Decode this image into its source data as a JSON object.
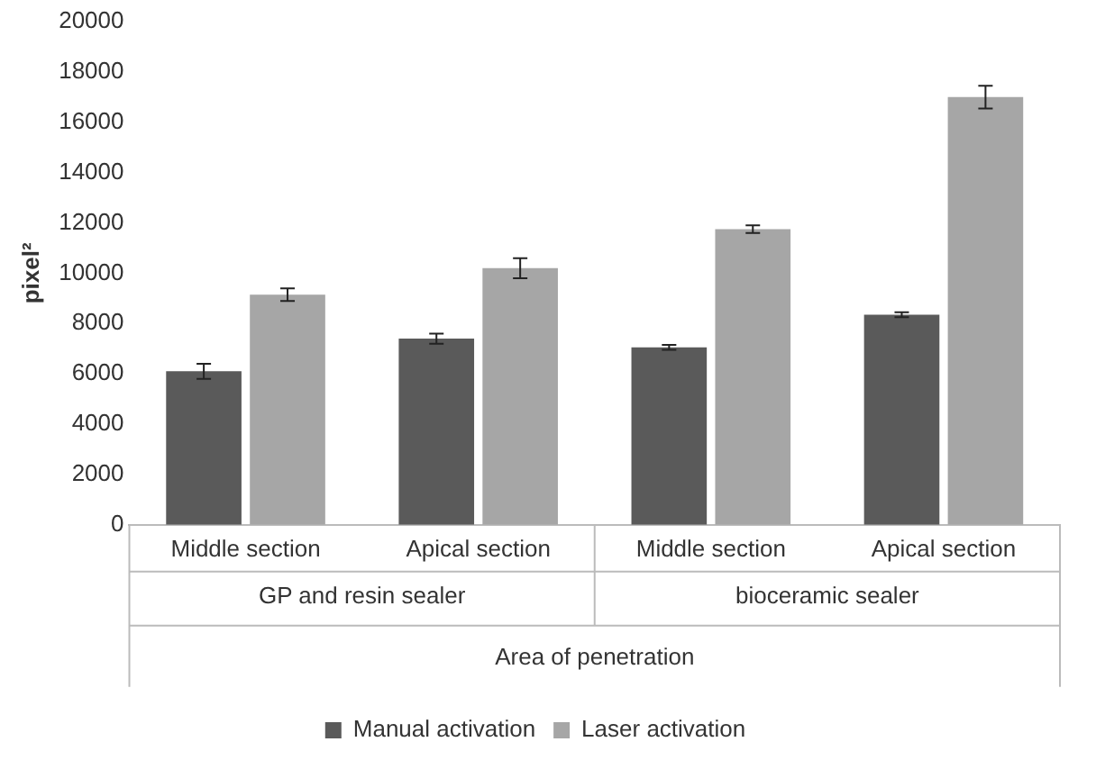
{
  "chart_data": {
    "type": "bar",
    "ylabel": "pixel²",
    "xlabel": "Area of penetration",
    "categories": [
      "Middle section",
      "Apical section",
      "Middle section",
      "Apical section"
    ],
    "annotations": [
      "GP and resin sealer",
      "bioceramic sealer"
    ],
    "series": [
      {
        "name": "Manual activation",
        "color": "#5a5a5a",
        "values": [
          6100,
          7400,
          7050,
          8350
        ],
        "errors": [
          300,
          200,
          100,
          100
        ]
      },
      {
        "name": "Laser activation",
        "color": "#a6a6a6",
        "values": [
          9150,
          10200,
          11750,
          17000
        ],
        "errors": [
          250,
          400,
          150,
          450
        ]
      }
    ],
    "ylim": [
      0,
      20000
    ],
    "yticks": [
      0,
      2000,
      4000,
      6000,
      8000,
      10000,
      12000,
      14000,
      16000,
      18000,
      20000
    ],
    "grid": false,
    "legend": "bottom"
  }
}
